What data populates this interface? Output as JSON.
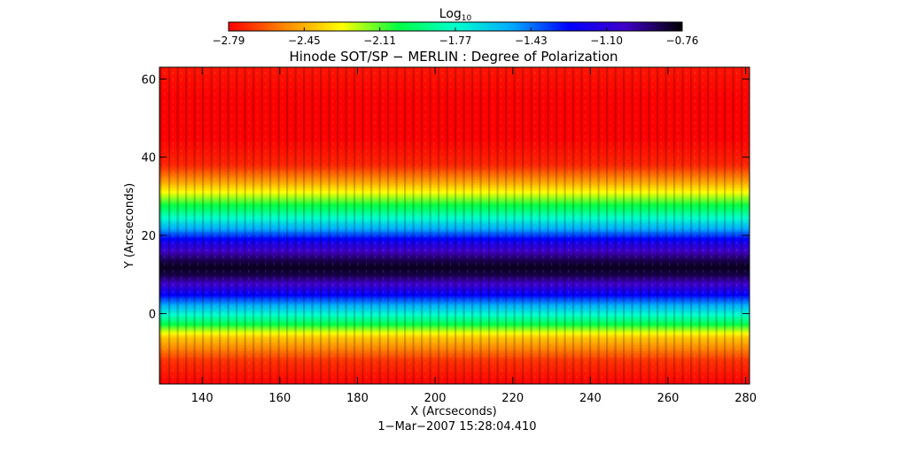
{
  "colorbar": {
    "label_main": "Log",
    "label_sub": "10",
    "ticks": [
      "−2.79",
      "−2.45",
      "−2.11",
      "−1.77",
      "−1.43",
      "−1.10",
      "−0.76"
    ],
    "range": [
      -2.79,
      -0.76
    ],
    "colormap": "rainbow",
    "colormap_stops": [
      "#ff0000",
      "#ff8800",
      "#ffff00",
      "#00ff44",
      "#00ffcc",
      "#00aaff",
      "#0000ff",
      "#4000c8",
      "#000000"
    ]
  },
  "chart_data": {
    "type": "heatmap",
    "title": "Hinode SOT/SP − MERLIN : Degree of Polarization",
    "xlabel": "X (Arcseconds)",
    "ylabel": "Y (Arcseconds)",
    "subtitle": "1−Mar−2007 15:28:04.410",
    "xlim": [
      129,
      281
    ],
    "ylim": [
      -18,
      63
    ],
    "x_ticks": [
      140,
      160,
      180,
      200,
      220,
      240,
      260,
      280
    ],
    "y_ticks": [
      0,
      20,
      40,
      60
    ],
    "value_unit": "Log10",
    "value_range": [
      -2.79,
      -0.76
    ],
    "y_profile": [
      {
        "y": -18,
        "value": -2.79
      },
      {
        "y": -12,
        "value": -2.7
      },
      {
        "y": -6,
        "value": -2.4
      },
      {
        "y": -2,
        "value": -1.95
      },
      {
        "y": 2,
        "value": -1.55
      },
      {
        "y": 6,
        "value": -1.15
      },
      {
        "y": 10,
        "value": -0.85
      },
      {
        "y": 12,
        "value": -0.8
      },
      {
        "y": 14,
        "value": -0.88
      },
      {
        "y": 18,
        "value": -1.15
      },
      {
        "y": 22,
        "value": -1.55
      },
      {
        "y": 26,
        "value": -1.9
      },
      {
        "y": 30,
        "value": -2.2
      },
      {
        "y": 34,
        "value": -2.5
      },
      {
        "y": 38,
        "value": -2.72
      },
      {
        "y": 45,
        "value": -2.79
      },
      {
        "y": 55,
        "value": -2.79
      },
      {
        "y": 63,
        "value": -2.75
      }
    ]
  }
}
